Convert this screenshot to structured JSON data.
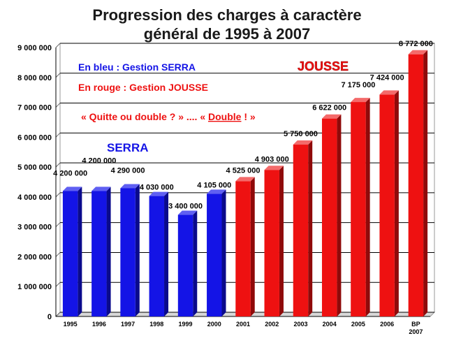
{
  "chart_data": {
    "type": "bar",
    "title_line1": "Progression des charges à caractère",
    "title_line2": "général de 1995 à 2007",
    "xlabel": "",
    "ylabel": "",
    "ylim": [
      0,
      9000000
    ],
    "y_ticks": [
      "0",
      "1 000 000",
      "2 000 000",
      "3 000 000",
      "4 000 000",
      "5 000 000",
      "6 000 000",
      "7 000 000",
      "8 000 000",
      "9 000 000"
    ],
    "grid": true,
    "categories": [
      "1995",
      "1996",
      "1997",
      "1998",
      "1999",
      "2000",
      "2001",
      "2002",
      "2003",
      "2004",
      "2005",
      "2006",
      "BP 2007"
    ],
    "values": [
      4200000,
      4200000,
      4290000,
      4030000,
      3400000,
      4105000,
      4525000,
      4903000,
      5750000,
      6622000,
      7175000,
      7424000,
      8772000
    ],
    "value_labels": [
      "4 200 000",
      "4 200 000",
      "4 290 000",
      "4 030 000",
      "3 400 000",
      "4 105 000",
      "4 525 000",
      "4 903 000",
      "5 750 000",
      "6 622 000",
      "7 175 000",
      "7 424 000",
      "8 772 000"
    ],
    "series_colors": {
      "serra": "#1414e6",
      "jousse": "#ee1111"
    },
    "serra_count": 6,
    "annotations": {
      "legend_blue": "En bleu : Gestion SERRA",
      "legend_red": "En rouge : Gestion JOUSSE",
      "quote_part1": "« Quitte ou double ? » .... « ",
      "quote_part2": "Double",
      "quote_part3": " ! »",
      "serra_label": "SERRA",
      "jousse_label": "JOUSSE"
    }
  }
}
